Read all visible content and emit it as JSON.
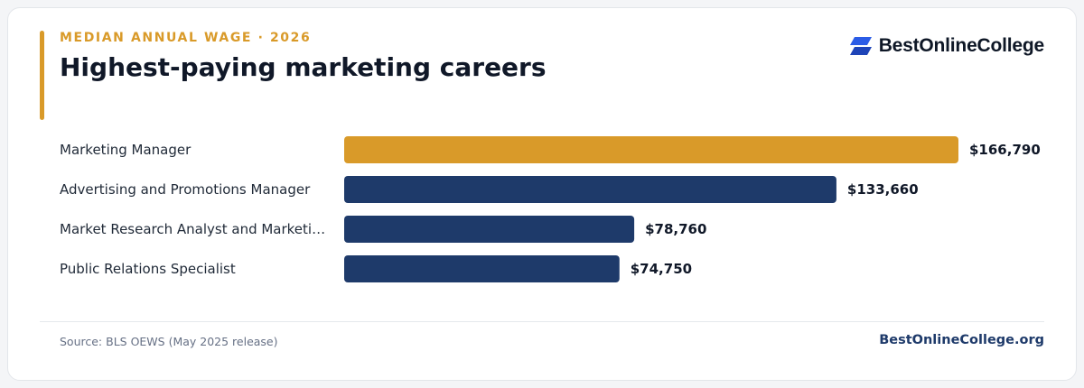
{
  "header": {
    "eyebrow": "MEDIAN ANNUAL WAGE · 2026",
    "title": "Highest-paying marketing careers"
  },
  "brand": {
    "name": "BestOnlineCollege",
    "icon": "stacked-chevron-logo",
    "color": "#2b5ce6"
  },
  "colors": {
    "accent": "#d99a29",
    "bar_highlight": "#d99a29",
    "bar_default": "#1e3a6a",
    "title": "#101828"
  },
  "chart_data": {
    "type": "bar",
    "orientation": "horizontal",
    "categories": [
      "Marketing Manager",
      "Advertising and Promotions Manager",
      "Market Research Analyst and Marketi…",
      "Public Relations Specialist"
    ],
    "values": [
      166790,
      133660,
      78760,
      74750
    ],
    "value_labels": [
      "$166,790",
      "$133,660",
      "$78,760",
      "$74,750"
    ],
    "highlight_index": 0,
    "xlim": [
      0,
      166790
    ],
    "grid": false,
    "legend": "none",
    "title": "Highest-paying marketing careers",
    "xlabel": "",
    "ylabel": ""
  },
  "footer": {
    "source": "Source: BLS OEWS (May 2025 release)",
    "site": "BestOnlineCollege.org"
  }
}
